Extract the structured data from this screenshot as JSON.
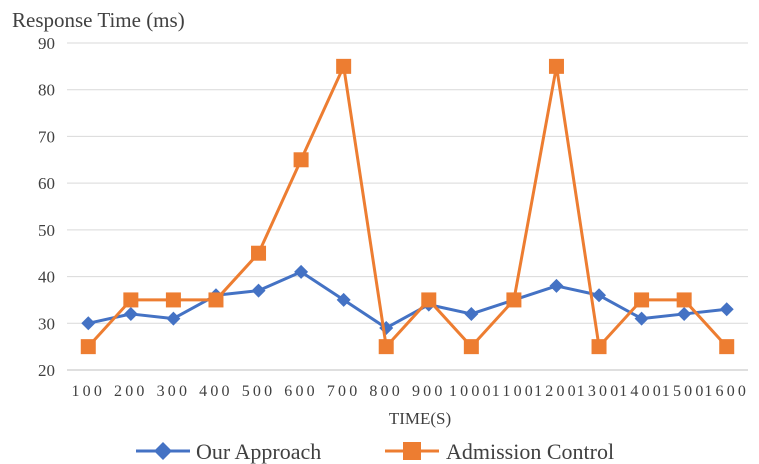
{
  "chart_data": {
    "type": "line",
    "ylabel": "Response Time (ms)",
    "xlabel": "TIME(S)",
    "ylim": [
      20,
      90
    ],
    "yticks": [
      20,
      30,
      40,
      50,
      60,
      70,
      80,
      90
    ],
    "categories": [
      "100",
      "200",
      "300",
      "400",
      "500",
      "600",
      "700",
      "800",
      "900",
      "1000",
      "1100",
      "1200",
      "1300",
      "1400",
      "1500",
      "1600"
    ],
    "grid": true,
    "legend_position": "bottom",
    "series": [
      {
        "name": "Our Approach",
        "marker": "diamond",
        "color": "#4472C4",
        "values": [
          30,
          32,
          31,
          36,
          37,
          41,
          35,
          29,
          34,
          32,
          35,
          38,
          36,
          31,
          32,
          33
        ]
      },
      {
        "name": "Admission Control",
        "marker": "square",
        "color": "#ED7D31",
        "values": [
          25,
          35,
          35,
          35,
          45,
          65,
          85,
          25,
          35,
          25,
          35,
          85,
          25,
          35,
          35,
          25
        ]
      }
    ]
  }
}
